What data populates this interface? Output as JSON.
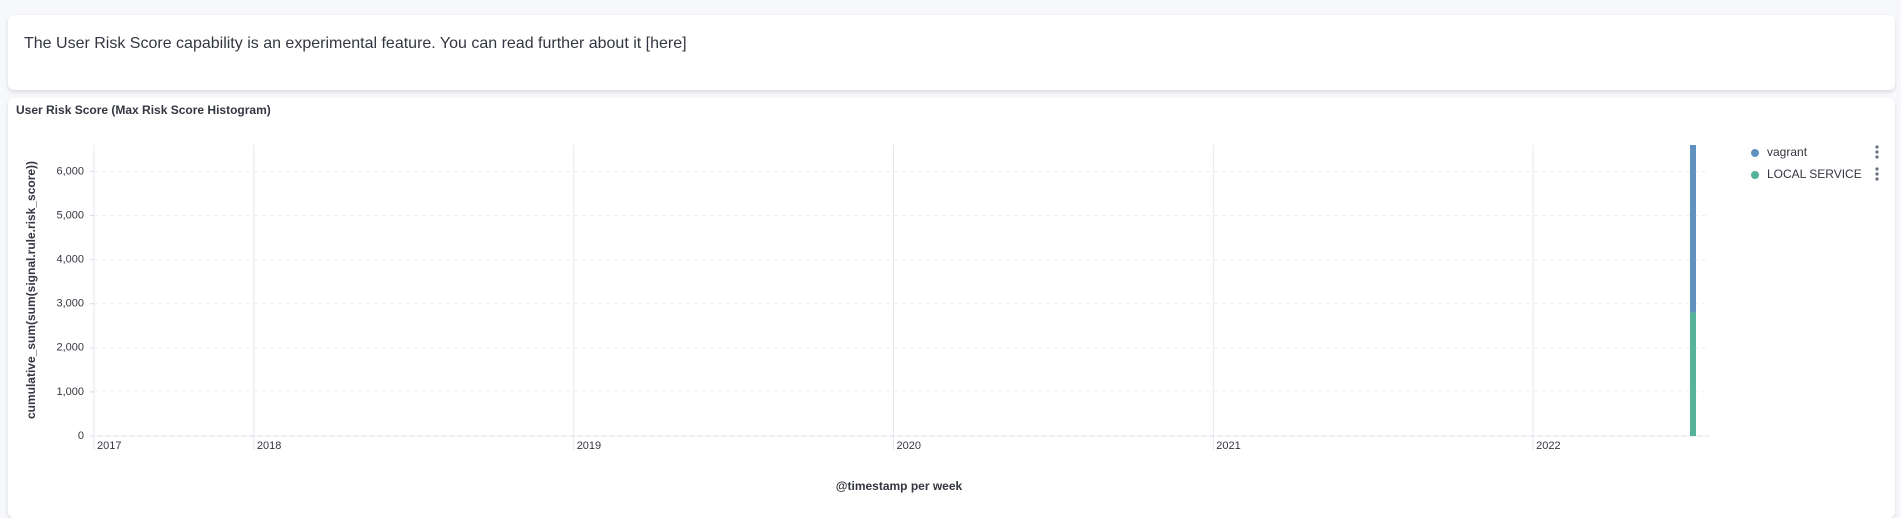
{
  "callout": {
    "text": "The User Risk Score capability is an experimental feature. You can read further about it [here]"
  },
  "chart_data": {
    "type": "bar",
    "stacked": true,
    "title": "User Risk Score (Max Risk Score Histogram)",
    "x_label": "@timestamp per week",
    "y_label": "cumulative_sum(sum(signal.rule.risk_score))",
    "x": [
      2022.5
    ],
    "series": [
      {
        "name": "LOCAL SERVICE",
        "color": "#54b399",
        "values": [
          2800
        ]
      },
      {
        "name": "vagrant",
        "color": "#6092c0",
        "values": [
          3800
        ]
      }
    ],
    "legend_order": [
      1,
      0
    ],
    "xlim": [
      2017.5,
      2022.55
    ],
    "xticks": [
      {
        "value": 2017.5,
        "label": "2017"
      },
      2018,
      2019,
      2020,
      2021,
      2022
    ],
    "ylim": [
      0,
      6600
    ],
    "yticks": [
      0,
      {
        "value": 1000,
        "label": "1,000"
      },
      {
        "value": 2000,
        "label": "2,000"
      },
      {
        "value": 3000,
        "label": "3,000"
      },
      {
        "value": 4000,
        "label": "4,000"
      },
      {
        "value": 5000,
        "label": "5,000"
      },
      {
        "value": 6000,
        "label": "6,000"
      }
    ],
    "grid": true,
    "legend": "top-right"
  }
}
